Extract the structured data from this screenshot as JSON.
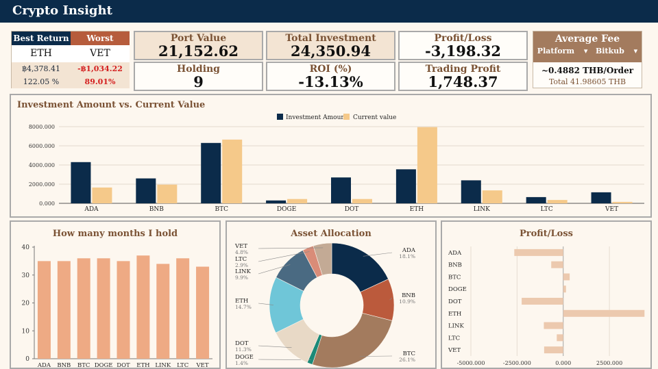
{
  "app": {
    "title": "Crypto Insight"
  },
  "best_return": {
    "header": "Best Return",
    "coin": "ETH",
    "value": "฿4,378.41",
    "percent": "122.05 %"
  },
  "worst_return": {
    "header": "Worst Return",
    "coin": "VET",
    "value": "-฿1,034.22",
    "percent": "89.01%"
  },
  "kpis": {
    "port_value": {
      "label": "Port Value",
      "value": "21,152.62"
    },
    "total_investment": {
      "label": "Total Investment",
      "value": "24,350.94"
    },
    "profit_loss": {
      "label": "Profit/Loss",
      "value": "-3,198.32"
    },
    "holding": {
      "label": "Holding",
      "value": "9"
    },
    "roi": {
      "label": "ROI (%)",
      "value": "-13.13%"
    },
    "trading_profit": {
      "label": "Trading Profit",
      "value": "1,748.37"
    }
  },
  "fee": {
    "title": "Average Fee",
    "platform_label": "Platform",
    "platform_arrow": "▾",
    "exchange_label": "Bitkub",
    "exchange_arrow": "▾",
    "per_order": "~0.4882 THB/Order",
    "total": "Total 41.98605 THB"
  },
  "colors": {
    "navy": "#0b2b4a",
    "sand": "#f5c98a",
    "salmon": "#eeaa84",
    "pl_bar": "#ecc9ae"
  },
  "chart_data": [
    {
      "id": "invest_vs_current",
      "type": "bar",
      "title": "Investment Amount vs. Current Value",
      "categories": [
        "ADA",
        "BNB",
        "BTC",
        "DOGE",
        "DOT",
        "ETH",
        "LINK",
        "LTC",
        "VET"
      ],
      "series": [
        {
          "name": "Investment Amount",
          "values": [
            4300,
            2600,
            6300,
            300,
            2700,
            3550,
            2400,
            650,
            1150
          ]
        },
        {
          "name": "Current value",
          "values": [
            1650,
            1950,
            6650,
            450,
            450,
            7950,
            1350,
            350,
            150
          ]
        }
      ],
      "yticks": [
        "0.000",
        "2000.000",
        "4000.000",
        "6000.000",
        "8000.000"
      ],
      "ylim": [
        0,
        8000
      ],
      "legend": "top"
    },
    {
      "id": "months_hold",
      "type": "bar",
      "title": "How many months I hold",
      "categories": [
        "ADA",
        "BNB",
        "BTC",
        "DOGE",
        "DOT",
        "ETH",
        "LINK",
        "LTC",
        "VET"
      ],
      "values": [
        35,
        35,
        36,
        36,
        35,
        37,
        34,
        36,
        33
      ],
      "yticks": [
        "0",
        "10",
        "20",
        "30",
        "40"
      ],
      "ylim": [
        0,
        40
      ]
    },
    {
      "id": "asset_allocation",
      "type": "pie",
      "title": "Asset Allocation",
      "labels": [
        "ADA",
        "BNB",
        "BTC",
        "DOGE",
        "DOT",
        "ETH",
        "LINK",
        "LTC",
        "VET"
      ],
      "percents": [
        "18.1%",
        "10.9%",
        "26.1%",
        "1.4%",
        "11.3%",
        "14.7%",
        "9.9%",
        "2.9%",
        "4.8%"
      ],
      "values": [
        18.1,
        10.9,
        26.1,
        1.4,
        11.3,
        14.7,
        9.9,
        2.9,
        4.8
      ],
      "colors": [
        "#0b2b4a",
        "#bb5a3c",
        "#a37b5e",
        "#1b8a78",
        "#e8d9c6",
        "#6fc6d8",
        "#4a6a82",
        "#d98c78",
        "#c3aa95"
      ]
    },
    {
      "id": "profit_loss",
      "type": "bar",
      "orientation": "horizontal",
      "title": "Profit/Loss",
      "categories": [
        "ADA",
        "BNB",
        "BTC",
        "DOGE",
        "DOT",
        "ETH",
        "LINK",
        "LTC",
        "VET"
      ],
      "values": [
        -2650,
        -650,
        350,
        150,
        -2250,
        4400,
        -1050,
        -350,
        -1034
      ],
      "xticks": [
        "-5000.000",
        "-2500.000",
        "0.000",
        "2500.000"
      ],
      "xtick_values": [
        -5000,
        -2500,
        0,
        2500
      ],
      "xlim": [
        -5000,
        4500
      ]
    }
  ]
}
